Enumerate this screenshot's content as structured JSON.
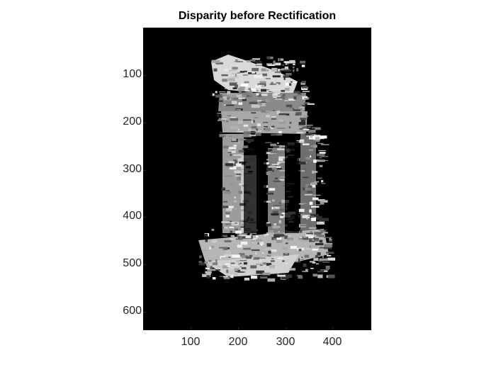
{
  "figure": {
    "title": "Disparity before Rectification",
    "background": "#ffffff",
    "axes_background": "#000000"
  },
  "chart_data": {
    "type": "heatmap",
    "title": "Disparity before Rectification",
    "colormap": "gray",
    "xlim": [
      0.5,
      480.5
    ],
    "ylim": [
      0.5,
      640.5
    ],
    "y_direction": "reverse",
    "xticks": [
      100,
      200,
      300,
      400
    ],
    "yticks": [
      100,
      200,
      300,
      400,
      500,
      600
    ],
    "xtick_labels": [
      "100",
      "200",
      "300",
      "400"
    ],
    "ytick_labels": [
      "100",
      "200",
      "300",
      "400",
      "500",
      "600"
    ],
    "grid": false,
    "xlabel": "",
    "ylabel": ""
  }
}
